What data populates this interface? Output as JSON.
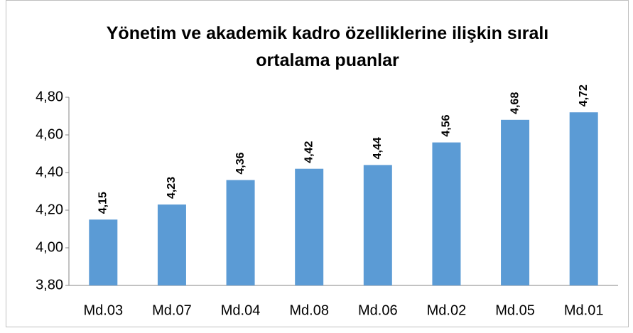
{
  "chart_data": {
    "type": "bar",
    "title": "Yönetim ve akademik kadro özelliklerine ilişkin sıralı ortalama puanlar",
    "categories": [
      "Md.03",
      "Md.07",
      "Md.04",
      "Md.08",
      "Md.06",
      "Md.02",
      "Md.05",
      "Md.01"
    ],
    "values": [
      4.15,
      4.23,
      4.36,
      4.42,
      4.44,
      4.56,
      4.68,
      4.72
    ],
    "value_labels": [
      "4,15",
      "4,23",
      "4,36",
      "4,42",
      "4,44",
      "4,56",
      "4,68",
      "4,72"
    ],
    "color": "#5b9bd5",
    "ylim": [
      3.8,
      4.8
    ],
    "yticks": [
      {
        "value": 3.8,
        "label": "3,80"
      },
      {
        "value": 4.0,
        "label": "4,00"
      },
      {
        "value": 4.2,
        "label": "4,20"
      },
      {
        "value": 4.4,
        "label": "4,40"
      },
      {
        "value": 4.6,
        "label": "4,60"
      },
      {
        "value": 4.8,
        "label": "4,80"
      }
    ],
    "grid": false
  }
}
